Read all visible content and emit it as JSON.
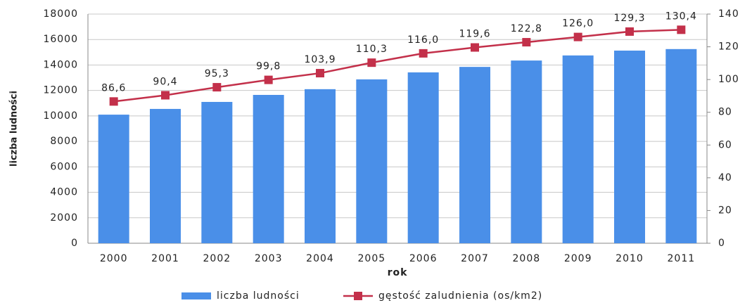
{
  "chart_data": {
    "type": "bar",
    "categories": [
      "2000",
      "2001",
      "2002",
      "2003",
      "2004",
      "2005",
      "2006",
      "2007",
      "2008",
      "2009",
      "2010",
      "2011"
    ],
    "x_label": "rok",
    "y_label": "liczba ludności",
    "series": [
      {
        "name": "liczba ludności",
        "type": "bar",
        "color": "#4a8fe8",
        "values": [
          10100,
          10550,
          11100,
          11650,
          12100,
          12870,
          13420,
          13850,
          14350,
          14750,
          15130,
          15250
        ]
      },
      {
        "name": "gęstość zaludnienia (os/km2)",
        "type": "line",
        "axis": "y2",
        "color": "#c3304a",
        "values": [
          86.6,
          90.4,
          95.3,
          99.8,
          103.9,
          110.3,
          116.0,
          119.6,
          122.8,
          126.0,
          129.3,
          130.4
        ],
        "value_labels": [
          "86,6",
          "90,4",
          "95,3",
          "99,8",
          "103,9",
          "110,3",
          "116,0",
          "119,6",
          "122,8",
          "126,0",
          "129,3",
          "130,4"
        ]
      }
    ],
    "ylim": [
      0,
      18000
    ],
    "yticks": [
      0,
      2000,
      4000,
      6000,
      8000,
      10000,
      12000,
      14000,
      16000,
      18000
    ],
    "y2lim": [
      0,
      140
    ],
    "y2ticks": [
      0,
      20,
      40,
      60,
      80,
      100,
      120,
      140
    ],
    "grid": true,
    "legend": "bottom"
  }
}
